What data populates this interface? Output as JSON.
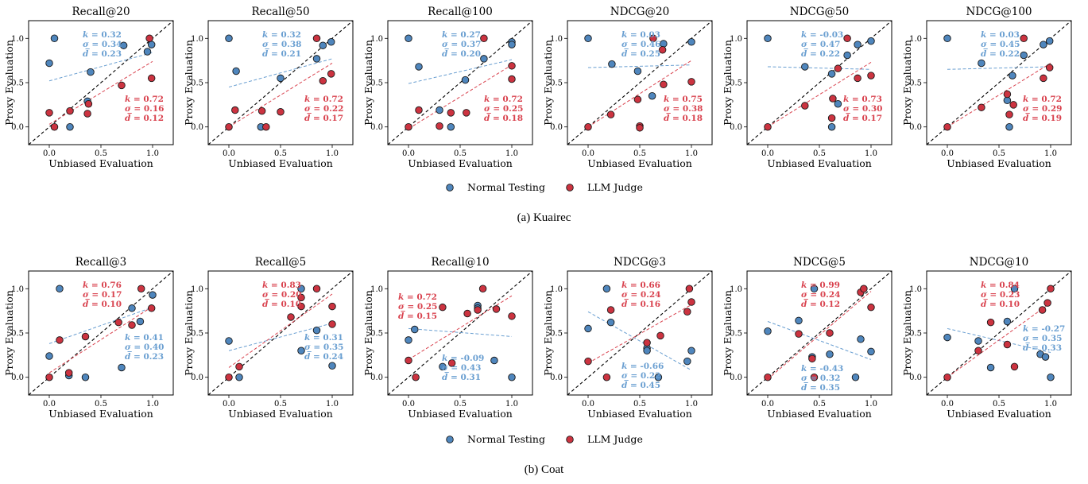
{
  "colors": {
    "normal": "#6a9fd1",
    "llm": "#d9434f",
    "normal_fill": "#4f86bd",
    "llm_fill": "#cc3340"
  },
  "axis_common": {
    "xlabel": "Unbiased Evaluation",
    "ylabel": "Proxy Evaluation",
    "xticks": [
      "0.0",
      "0.5",
      "1.0"
    ],
    "yticks": [
      "0.0",
      "0.5",
      "1.0"
    ],
    "xlim": [
      -0.2,
      1.2
    ],
    "ylim": [
      -0.2,
      1.2
    ]
  },
  "legend": {
    "normal": "Normal Testing",
    "llm": "LLM Judge"
  },
  "captions": {
    "a": "(a)  Kuairec",
    "b": "(b)  Coat"
  },
  "chart_data": [
    {
      "type": "scatter",
      "group": "a",
      "title": "Recall@20",
      "normal": {
        "k": "0.32",
        "sigma": "0.34",
        "d": "0.23",
        "fit": [
          0.52,
          0.84
        ],
        "points": [
          [
            0.05,
            1.0
          ],
          [
            0.0,
            0.72
          ],
          [
            0.4,
            0.62
          ],
          [
            0.2,
            0.0
          ],
          [
            0.72,
            0.92
          ],
          [
            0.95,
            0.85
          ],
          [
            0.99,
            0.93
          ],
          [
            0.37,
            0.29
          ]
        ]
      },
      "llm": {
        "k": "0.72",
        "sigma": "0.16",
        "d": "0.12",
        "fit": [
          0.03,
          0.74
        ],
        "points": [
          [
            0.0,
            0.16
          ],
          [
            0.05,
            0.0
          ],
          [
            0.2,
            0.18
          ],
          [
            0.37,
            0.15
          ],
          [
            0.38,
            0.26
          ],
          [
            0.7,
            0.47
          ],
          [
            0.97,
            1.0
          ],
          [
            0.99,
            0.55
          ]
        ]
      }
    },
    {
      "type": "scatter",
      "group": "a",
      "title": "Recall@50",
      "normal": {
        "k": "0.32",
        "sigma": "0.38",
        "d": "0.21",
        "fit": [
          0.45,
          0.77
        ],
        "points": [
          [
            0.0,
            1.0
          ],
          [
            0.07,
            0.63
          ],
          [
            0.5,
            0.55
          ],
          [
            0.85,
            0.77
          ],
          [
            0.91,
            0.92
          ],
          [
            0.99,
            0.96
          ],
          [
            0.31,
            0.0
          ]
        ]
      },
      "llm": {
        "k": "0.72",
        "sigma": "0.22",
        "d": "0.17",
        "fit": [
          0.0,
          0.72
        ],
        "points": [
          [
            0.0,
            0.0
          ],
          [
            0.06,
            0.19
          ],
          [
            0.32,
            0.18
          ],
          [
            0.36,
            0.0
          ],
          [
            0.5,
            0.17
          ],
          [
            0.85,
            1.0
          ],
          [
            0.91,
            0.52
          ],
          [
            0.99,
            0.6
          ]
        ]
      }
    },
    {
      "type": "scatter",
      "group": "a",
      "title": "Recall@100",
      "normal": {
        "k": "0.27",
        "sigma": "0.37",
        "d": "0.20",
        "fit": [
          0.49,
          0.76
        ],
        "points": [
          [
            0.0,
            1.0
          ],
          [
            0.1,
            0.68
          ],
          [
            0.3,
            0.19
          ],
          [
            0.41,
            0.0
          ],
          [
            0.55,
            0.53
          ],
          [
            0.73,
            0.77
          ],
          [
            1.0,
            0.96
          ],
          [
            1.0,
            0.93
          ]
        ]
      },
      "llm": {
        "k": "0.72",
        "sigma": "0.25",
        "d": "0.18",
        "fit": [
          -0.02,
          0.7
        ],
        "points": [
          [
            0.0,
            0.0
          ],
          [
            0.1,
            0.19
          ],
          [
            0.3,
            0.01
          ],
          [
            0.41,
            0.16
          ],
          [
            0.56,
            0.16
          ],
          [
            0.73,
            1.0
          ],
          [
            1.0,
            0.69
          ],
          [
            1.0,
            0.54
          ]
        ]
      }
    },
    {
      "type": "scatter",
      "group": "a",
      "title": "NDCG@20",
      "normal": {
        "k": "0.03",
        "sigma": "0.46",
        "d": "0.25",
        "fit": [
          0.67,
          0.7
        ],
        "points": [
          [
            0.0,
            1.0
          ],
          [
            0.23,
            0.71
          ],
          [
            0.48,
            0.63
          ],
          [
            0.62,
            0.35
          ],
          [
            0.73,
            0.94
          ],
          [
            1.0,
            0.96
          ]
        ]
      },
      "llm": {
        "k": "0.75",
        "sigma": "0.38",
        "d": "0.18",
        "fit": [
          0.0,
          0.75
        ],
        "points": [
          [
            0.0,
            0.0
          ],
          [
            0.22,
            0.14
          ],
          [
            0.48,
            0.31
          ],
          [
            0.5,
            0.01
          ],
          [
            0.5,
            -0.01
          ],
          [
            0.63,
            1.0
          ],
          [
            0.72,
            0.87
          ],
          [
            0.73,
            0.48
          ],
          [
            1.0,
            0.51
          ]
        ]
      }
    },
    {
      "type": "scatter",
      "group": "a",
      "title": "NDCG@50",
      "normal": {
        "k": "-0.03",
        "sigma": "0.47",
        "d": "0.22",
        "fit": [
          0.68,
          0.65
        ],
        "points": [
          [
            0.0,
            1.0
          ],
          [
            0.36,
            0.68
          ],
          [
            0.62,
            0.6
          ],
          [
            0.62,
            0.0
          ],
          [
            0.68,
            0.26
          ],
          [
            0.77,
            0.81
          ],
          [
            0.87,
            0.93
          ],
          [
            1.0,
            0.97
          ]
        ]
      },
      "llm": {
        "k": "0.73",
        "sigma": "0.30",
        "d": "0.17",
        "fit": [
          0.0,
          0.73
        ],
        "points": [
          [
            0.0,
            0.0
          ],
          [
            0.36,
            0.24
          ],
          [
            0.62,
            0.1
          ],
          [
            0.63,
            0.32
          ],
          [
            0.68,
            0.66
          ],
          [
            0.77,
            1.0
          ],
          [
            0.87,
            0.55
          ],
          [
            1.0,
            0.58
          ]
        ]
      }
    },
    {
      "type": "scatter",
      "group": "a",
      "title": "NDCG@100",
      "normal": {
        "k": "0.03",
        "sigma": "0.45",
        "d": "0.22",
        "fit": [
          0.65,
          0.68
        ],
        "points": [
          [
            0.0,
            1.0
          ],
          [
            0.33,
            0.72
          ],
          [
            0.58,
            0.3
          ],
          [
            0.6,
            0.0
          ],
          [
            0.63,
            0.58
          ],
          [
            0.74,
            0.81
          ],
          [
            0.93,
            0.93
          ],
          [
            0.99,
            0.97
          ]
        ]
      },
      "llm": {
        "k": "0.72",
        "sigma": "0.29",
        "d": "0.19",
        "fit": [
          0.0,
          0.72
        ],
        "points": [
          [
            0.0,
            0.0
          ],
          [
            0.33,
            0.22
          ],
          [
            0.58,
            0.37
          ],
          [
            0.6,
            0.14
          ],
          [
            0.64,
            0.25
          ],
          [
            0.74,
            1.0
          ],
          [
            0.93,
            0.55
          ],
          [
            0.99,
            0.67
          ]
        ]
      }
    },
    {
      "type": "scatter",
      "group": "b",
      "title": "Recall@3",
      "normal": {
        "k": "0.41",
        "sigma": "0.40",
        "d": "0.23",
        "fit": [
          0.38,
          0.79
        ],
        "points": [
          [
            0.0,
            0.24
          ],
          [
            0.1,
            1.0
          ],
          [
            0.19,
            0.02
          ],
          [
            0.35,
            0.0
          ],
          [
            0.7,
            0.11
          ],
          [
            0.8,
            0.78
          ],
          [
            0.88,
            0.63
          ],
          [
            1.0,
            0.93
          ]
        ]
      },
      "llm": {
        "k": "0.76",
        "sigma": "0.17",
        "d": "0.10",
        "fit": [
          0.05,
          0.8
        ],
        "points": [
          [
            0.0,
            0.0
          ],
          [
            0.1,
            0.42
          ],
          [
            0.19,
            0.05
          ],
          [
            0.35,
            0.46
          ],
          [
            0.67,
            0.62
          ],
          [
            0.8,
            0.59
          ],
          [
            0.89,
            1.0
          ],
          [
            0.99,
            0.78
          ]
        ]
      }
    },
    {
      "type": "scatter",
      "group": "b",
      "title": "Recall@5",
      "normal": {
        "k": "0.31",
        "sigma": "0.35",
        "d": "0.24",
        "fit": [
          0.3,
          0.61
        ],
        "points": [
          [
            0.0,
            0.41
          ],
          [
            0.1,
            0.0
          ],
          [
            0.7,
            1.0
          ],
          [
            0.7,
            0.3
          ],
          [
            0.85,
            0.53
          ],
          [
            1.0,
            0.13
          ]
        ]
      },
      "llm": {
        "k": "0.83",
        "sigma": "0.20",
        "d": "0.10",
        "fit": [
          0.11,
          0.94
        ],
        "points": [
          [
            0.0,
            0.0
          ],
          [
            0.1,
            0.12
          ],
          [
            0.6,
            0.68
          ],
          [
            0.7,
            0.9
          ],
          [
            0.7,
            0.8
          ],
          [
            0.85,
            1.0
          ],
          [
            1.0,
            0.8
          ],
          [
            1.0,
            0.6
          ]
        ]
      }
    },
    {
      "type": "scatter",
      "group": "b",
      "title": "Recall@10",
      "normal": {
        "k": "-0.09",
        "sigma": "0.43",
        "d": "0.31",
        "fit": [
          0.55,
          0.46
        ],
        "points": [
          [
            0.0,
            0.42
          ],
          [
            0.06,
            0.54
          ],
          [
            0.33,
            0.12
          ],
          [
            0.67,
            0.81
          ],
          [
            0.67,
            0.78
          ],
          [
            0.83,
            0.19
          ],
          [
            1.0,
            0.0
          ]
        ]
      },
      "llm": {
        "k": "0.72",
        "sigma": "0.25",
        "d": "0.15",
        "fit": [
          0.2,
          0.92
        ],
        "points": [
          [
            0.0,
            0.19
          ],
          [
            0.07,
            0.0
          ],
          [
            0.33,
            0.79
          ],
          [
            0.42,
            0.16
          ],
          [
            0.57,
            0.72
          ],
          [
            0.67,
            0.76
          ],
          [
            0.72,
            1.0
          ],
          [
            0.85,
            0.77
          ],
          [
            1.0,
            0.69
          ]
        ]
      }
    },
    {
      "type": "scatter",
      "group": "b",
      "title": "NDCG@3",
      "normal": {
        "k": "-0.66",
        "sigma": "0.22",
        "d": "0.45",
        "fit": [
          0.74,
          0.08
        ],
        "points": [
          [
            0.0,
            0.55
          ],
          [
            0.18,
            1.0
          ],
          [
            0.22,
            0.62
          ],
          [
            0.57,
            0.33
          ],
          [
            0.57,
            0.3
          ],
          [
            0.68,
            0.0
          ],
          [
            0.96,
            0.18
          ],
          [
            1.0,
            0.3
          ]
        ]
      },
      "llm": {
        "k": "0.66",
        "sigma": "0.24",
        "d": "0.16",
        "fit": [
          0.16,
          0.82
        ],
        "points": [
          [
            0.0,
            0.18
          ],
          [
            0.18,
            0.0
          ],
          [
            0.22,
            0.76
          ],
          [
            0.57,
            0.39
          ],
          [
            0.7,
            0.47
          ],
          [
            0.96,
            0.74
          ],
          [
            0.98,
            1.0
          ],
          [
            1.0,
            0.85
          ]
        ]
      }
    },
    {
      "type": "scatter",
      "group": "b",
      "title": "NDCG@5",
      "normal": {
        "k": "-0.43",
        "sigma": "0.32",
        "d": "0.35",
        "fit": [
          0.63,
          0.2
        ],
        "points": [
          [
            0.0,
            0.52
          ],
          [
            0.3,
            0.64
          ],
          [
            0.43,
            0.23
          ],
          [
            0.45,
            1.0
          ],
          [
            0.6,
            0.26
          ],
          [
            0.9,
            0.43
          ],
          [
            1.0,
            0.29
          ],
          [
            0.85,
            0.0
          ]
        ]
      },
      "llm": {
        "k": "0.99",
        "sigma": "0.24",
        "d": "0.12",
        "fit": [
          -0.02,
          0.97
        ],
        "points": [
          [
            0.0,
            0.0
          ],
          [
            0.3,
            0.49
          ],
          [
            0.43,
            0.21
          ],
          [
            0.45,
            0.0
          ],
          [
            0.6,
            0.5
          ],
          [
            0.9,
            0.96
          ],
          [
            0.93,
            1.0
          ],
          [
            1.0,
            0.79
          ]
        ]
      }
    },
    {
      "type": "scatter",
      "group": "b",
      "title": "NDCG@10",
      "normal": {
        "k": "-0.27",
        "sigma": "0.35",
        "d": "0.33",
        "fit": [
          0.55,
          0.28
        ],
        "points": [
          [
            0.0,
            0.45
          ],
          [
            0.3,
            0.41
          ],
          [
            0.42,
            0.11
          ],
          [
            0.58,
            0.63
          ],
          [
            0.65,
            1.0
          ],
          [
            0.9,
            0.26
          ],
          [
            0.95,
            0.23
          ],
          [
            1.0,
            0.0
          ]
        ]
      },
      "llm": {
        "k": "0.84",
        "sigma": "0.23",
        "d": "0.10",
        "fit": [
          0.0,
          0.84
        ],
        "points": [
          [
            0.0,
            0.0
          ],
          [
            0.3,
            0.3
          ],
          [
            0.42,
            0.62
          ],
          [
            0.58,
            0.37
          ],
          [
            0.65,
            0.12
          ],
          [
            0.92,
            0.76
          ],
          [
            0.97,
            0.84
          ],
          [
            1.0,
            1.0
          ]
        ]
      }
    }
  ]
}
